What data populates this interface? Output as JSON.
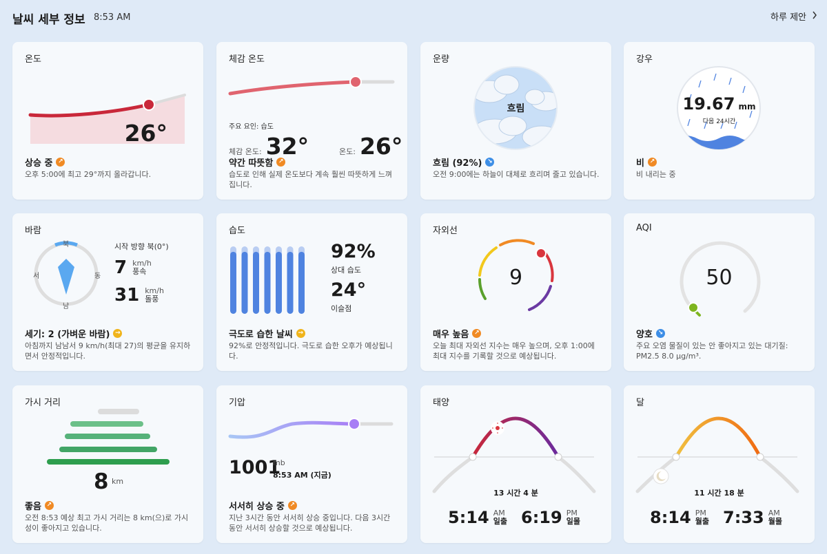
{
  "header": {
    "title": "날씨 세부 정보",
    "time": "8:53 AM",
    "link": "하루 제안",
    "link_icon": "chevron-right-icon"
  },
  "temperature": {
    "title": "온도",
    "value": "26°",
    "status": "상승 중",
    "desc": "오후 5:00에 최고 29°까지 올라갑니다."
  },
  "feels_like": {
    "title": "체감 온도",
    "factor": "주요 요인: 습도",
    "feels_label": "체감 온도:",
    "feels_value": "32°",
    "temp_label": "온도:",
    "temp_value": "26°",
    "status": "약간 따뜻함",
    "desc": "습도로 인해 실제 온도보다 계속 훨씬 따뜻하게 느껴집니다."
  },
  "cloud": {
    "title": "운량",
    "center": "흐림",
    "status": "흐림 (92%)",
    "desc": "오전 9:00에는 하늘이 대체로 흐리며 줄고 있습니다."
  },
  "rain": {
    "title": "강우",
    "value": "19.67",
    "unit": "mm",
    "sub": "다음 24시간",
    "status": "비",
    "desc": "비 내리는 중"
  },
  "wind": {
    "title": "바람",
    "n": "북",
    "s": "남",
    "e": "동",
    "w": "서",
    "from": "시작 방향 북(0°)",
    "speed": "7",
    "speed_unit": "km/h",
    "speed_label": "풍속",
    "gust": "31",
    "gust_unit": "km/h",
    "gust_label": "돌풍",
    "status": "세기: 2 (가벼운 바람)",
    "desc": "아침까지 남남서 9 km/h(최대 27)의 평균을 유지하면서 안정적입니다."
  },
  "humidity": {
    "title": "습도",
    "value": "92%",
    "value_label": "상대 습도",
    "dew": "24°",
    "dew_label": "이슬점",
    "status": "극도로 습한 날씨",
    "desc": "92%로 안정적입니다. 극도로 습한 오후가 예상됩니다.",
    "level": 0.92
  },
  "uv": {
    "title": "자외선",
    "value": "9",
    "status": "매우 높음",
    "desc": "오늘 최대 자외선 지수는 매우 높으며, 오후 1:00에 최대 지수를 기록할 것으로 예상됩니다."
  },
  "aqi": {
    "title": "AQI",
    "value": "50",
    "status": "양호",
    "desc": "주요 오염 물질이 있는 안 좋아지고 있는 대기질: PM2.5 8.0 μg/m³."
  },
  "visibility": {
    "title": "가시 거리",
    "value": "8",
    "unit": "km",
    "status": "좋음",
    "desc": "오전 8:53 예상 최고 가시 거리는 8 km(으)로 가시성이 좋아지고 있습니다."
  },
  "pressure": {
    "title": "기압",
    "value": "1001",
    "unit": "mb",
    "time": "8:53 AM (지금)",
    "status": "서서히 상승 중",
    "desc": "지난 3시간 동안 서서히 상승 중입니다. 다음 3시간 동안 서서히 상승할 것으로 예상됩니다."
  },
  "sun": {
    "title": "태양",
    "duration": "13 시간 4 분",
    "rise": "5:14",
    "rise_ampm": "AM",
    "rise_label": "일출",
    "set": "6:19",
    "set_ampm": "PM",
    "set_label": "일몰"
  },
  "moon": {
    "title": "달",
    "duration": "11 시간 18 분",
    "rise": "8:14",
    "rise_ampm": "PM",
    "rise_label": "월출",
    "set": "7:33",
    "set_ampm": "AM",
    "set_label": "월몰"
  },
  "colors": {
    "accent_red": "#c9283a",
    "accent_orange": "#f08a24",
    "humidity_blue": "#4f83e0",
    "pressure_purple": "#a87ef5",
    "vis_green": "#2e9e4e"
  },
  "badge_icons": {
    "up": "trend-up-icon",
    "flat": "trend-flat-icon",
    "down": "trend-down-icon"
  }
}
